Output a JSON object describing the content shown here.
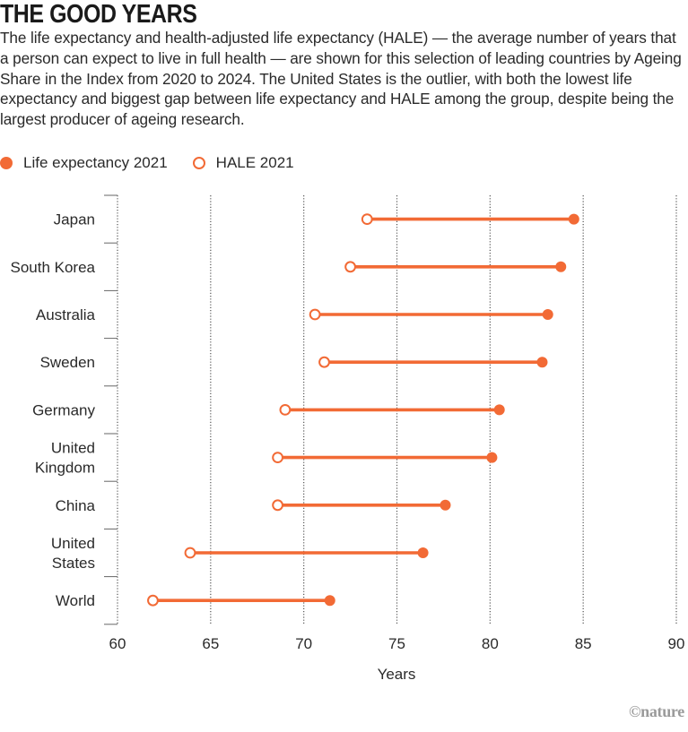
{
  "header": {
    "title": "THE GOOD YEARS",
    "description": "The life expectancy and health-adjusted life expectancy (HALE) — the average number of years that a person can expect to live in full health — are shown for this selection of leading countries by Ageing Share in the Index from 2020 to 2024. The United States is the outlier, with both the lowest life expectancy and biggest gap between life expectancy and HALE among the group, despite being the largest producer of ageing research."
  },
  "footer": {
    "credit": "©nature"
  },
  "colors": {
    "accent": "#f26a35",
    "grid": "#555555",
    "text": "#2a2a2a"
  },
  "chart_data": {
    "type": "dumbbell",
    "title": "THE GOOD YEARS",
    "xlabel": "Years",
    "ylabel": "",
    "xlim": [
      60,
      90
    ],
    "xticks": [
      60,
      65,
      70,
      75,
      80,
      85,
      90
    ],
    "grid": "vertical dotted",
    "legend_position": "top-left",
    "legend": [
      {
        "name": "Life expectancy 2021",
        "marker": "filled-circle"
      },
      {
        "name": "HALE 2021",
        "marker": "open-circle"
      }
    ],
    "categories": [
      [
        "Japan"
      ],
      [
        "South Korea"
      ],
      [
        "Australia"
      ],
      [
        "Sweden"
      ],
      [
        "Germany"
      ],
      [
        "United",
        "Kingdom"
      ],
      [
        "China"
      ],
      [
        "United",
        "States"
      ],
      [
        "World"
      ]
    ],
    "series": [
      {
        "name": "Life expectancy 2021",
        "values": [
          84.5,
          83.8,
          83.1,
          82.8,
          80.5,
          80.1,
          77.6,
          76.4,
          71.4
        ]
      },
      {
        "name": "HALE 2021",
        "values": [
          73.4,
          72.5,
          70.6,
          71.1,
          69.0,
          68.6,
          68.6,
          63.9,
          61.9
        ]
      }
    ]
  }
}
